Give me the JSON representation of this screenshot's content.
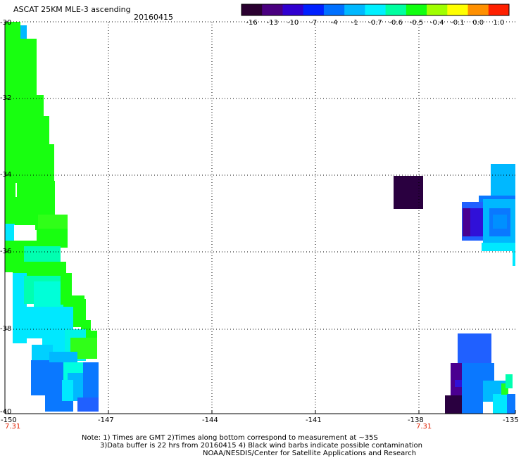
{
  "header": {
    "title": "ASCAT 25KM MLE-3 ascending",
    "date": "20160415"
  },
  "colorbar": {
    "labels": [
      "-16",
      "-13",
      "-10",
      "-7",
      "-4",
      "-1",
      "-0.7",
      "-0.6",
      "-0.5",
      "-0.4",
      "-0.1",
      "0.0",
      "1.0"
    ],
    "colors": [
      "#2a0030",
      "#4a0080",
      "#3000d0",
      "#0020ff",
      "#0070ff",
      "#00b8ff",
      "#00f0ff",
      "#00ffa0",
      "#10ff10",
      "#a0ff00",
      "#ffff00",
      "#ff9000",
      "#ff2000"
    ]
  },
  "map": {
    "lat_labels": [
      "-30",
      "-32",
      "-34",
      "-36",
      "-38",
      "-40"
    ],
    "lon_labels": [
      "-150",
      "-147",
      "-144",
      "-141",
      "-138",
      "-135"
    ],
    "time_labels": [
      "7.31",
      "7.31"
    ]
  },
  "notes": {
    "line1": "Note: 1) Times are GMT 2)Times along bottom correspond to measurement at ~35S",
    "line2": "3)Data buffer is 22 hrs from 20160415 4) Black wind barbs indicate possible contamination",
    "line3": "NOAA/NESDIS/Center for Satellite Applications and Research"
  }
}
